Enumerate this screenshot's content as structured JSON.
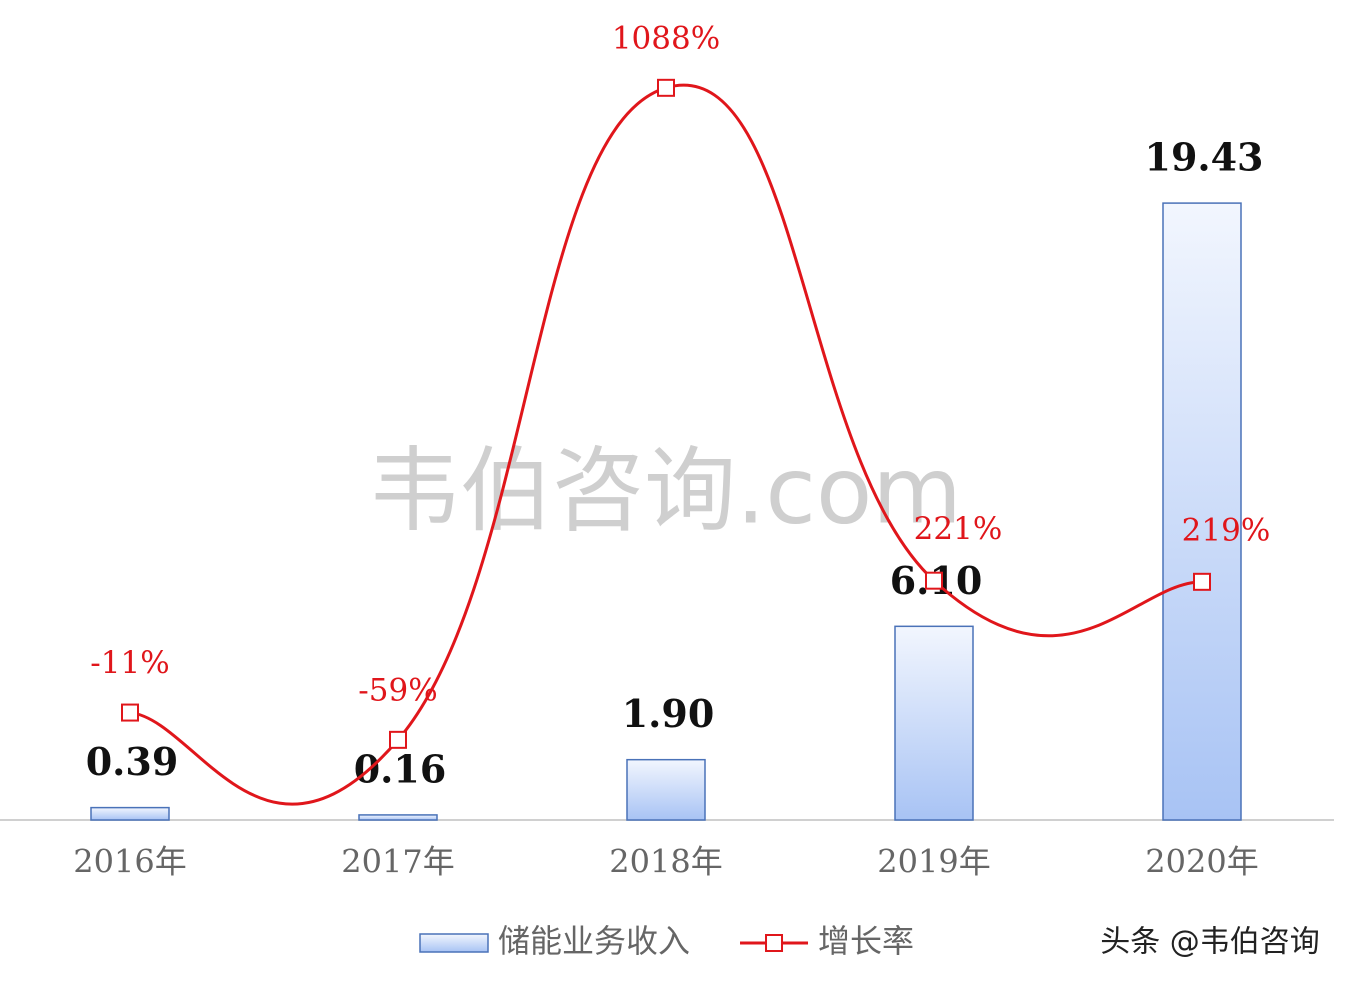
{
  "chart_data": {
    "type": "bar",
    "categories": [
      "2016年",
      "2017年",
      "2018年",
      "2019年",
      "2020年"
    ],
    "series": [
      {
        "name": "储能业务收入",
        "type": "bar",
        "color": "#4a72b8",
        "values": [
          0.39,
          0.16,
          1.9,
          6.1,
          19.43
        ],
        "value_labels": [
          "0.39",
          "0.16",
          "1.90",
          "6.10",
          "19.43"
        ]
      },
      {
        "name": "增长率",
        "type": "line",
        "axis": "y2",
        "color": "#e0161b",
        "values": [
          -11,
          -59,
          1088,
          221,
          219
        ],
        "value_labels": [
          "-11%",
          "-59%",
          "1088%",
          "221%",
          "219%"
        ]
      }
    ],
    "ylim": [
      0,
      20
    ],
    "y2lim": [
      -200,
      1100
    ],
    "watermark": "韦伯咨询.com",
    "credit": "头条 @韦伯咨询"
  }
}
